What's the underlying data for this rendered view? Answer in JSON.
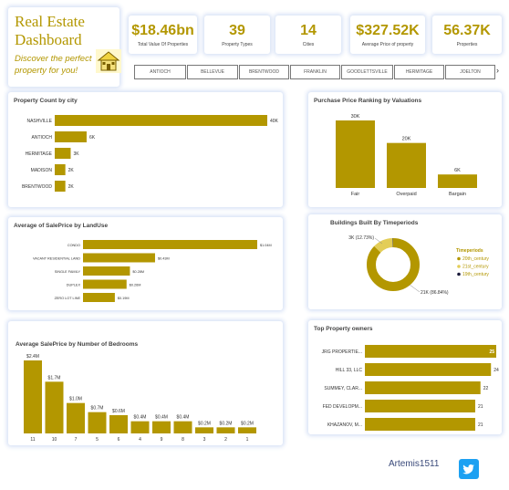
{
  "header": {
    "title_line1": "Real Estate",
    "title_line2": "Dashboard",
    "tagline_line1": "Discover the perfect",
    "tagline_line2": "property for you!",
    "house_icon": "house-icon"
  },
  "kpis": [
    {
      "value": "$18.46bn",
      "label": "Total Value Of Properties"
    },
    {
      "value": "39",
      "label": "Property Types"
    },
    {
      "value": "14",
      "label": "Cities"
    },
    {
      "value": "$327.52K",
      "label": "Average Price of property"
    },
    {
      "value": "56.37K",
      "label": "Properties"
    }
  ],
  "city_slicer": {
    "items": [
      "ANTIOCH",
      "BELLEVUE",
      "BRENTWOOD",
      "FRANKLIN",
      "GOODLETTSVILLE",
      "HERMITAGE",
      "JOELTON"
    ],
    "next_icon": "chevron-right-icon"
  },
  "footer": {
    "author": "Artemis1511",
    "twitter_icon": "twitter-icon"
  },
  "colors": {
    "gold": "#b39700",
    "light_gold": "#e3cd57",
    "dark": "#1a1a3a"
  },
  "chart_data": [
    {
      "id": "count_city",
      "type": "bar",
      "orientation": "horizontal",
      "title": "Property Count by city",
      "categories": [
        "NASHVILLE",
        "ANTIOCH",
        "HERMITAGE",
        "MADISON",
        "BRENTWOOD"
      ],
      "values": [
        40000,
        6000,
        3000,
        2000,
        2000
      ],
      "labels": [
        "40K",
        "6K",
        "3K",
        "2K",
        "2K"
      ]
    },
    {
      "id": "price_rank",
      "type": "bar",
      "orientation": "vertical",
      "title": "Purchase Price Ranking by Valuations",
      "categories": [
        "Fair",
        "Overpaid",
        "Bargain"
      ],
      "values": [
        30000,
        20000,
        6000
      ],
      "labels": [
        "30K",
        "20K",
        "6K"
      ]
    },
    {
      "id": "landuse",
      "type": "bar",
      "orientation": "horizontal",
      "title": "Average of SalePrice by LandUse",
      "categories": [
        "CONDO",
        "VACANT RESIDENTIAL LAND",
        "SINGLE FAMILY",
        "DUPLEX",
        "ZERO LOT LINE"
      ],
      "values": [
        1.04,
        0.43,
        0.28,
        0.26,
        0.19
      ],
      "labels": [
        "$1.04M",
        "$0.43M",
        "$0.28M",
        "$0.26M",
        "$0.19M"
      ]
    },
    {
      "id": "timeperiods",
      "type": "pie",
      "variant": "donut",
      "title": "Buildings Built By Timeperiods",
      "legend_title": "Timeperiods",
      "slices": [
        {
          "name": "20th_century",
          "value": 21000,
          "label": "21K (86.84%)",
          "color": "#b39700"
        },
        {
          "name": "21st_century",
          "value": 3000,
          "label": "3K (12.73%)",
          "color": "#e3cd57"
        },
        {
          "name": "19th_century",
          "value": 104,
          "label": "",
          "color": "#1a1a3a"
        }
      ],
      "legend_position": "right"
    },
    {
      "id": "bedrooms",
      "type": "bar",
      "orientation": "vertical",
      "title": "Average SalePrice by Number of Bedrooms",
      "categories": [
        "11",
        "10",
        "7",
        "5",
        "6",
        "4",
        "9",
        "8",
        "3",
        "2",
        "1"
      ],
      "values": [
        2.4,
        1.7,
        1.0,
        0.7,
        0.6,
        0.4,
        0.4,
        0.4,
        0.2,
        0.2,
        0.2
      ],
      "labels": [
        "$2.4M",
        "$1.7M",
        "$1.0M",
        "$0.7M",
        "$0.6M",
        "$0.4M",
        "$0.4M",
        "$0.4M",
        "$0.2M",
        "$0.2M",
        "$0.2M"
      ]
    },
    {
      "id": "owners",
      "type": "bar",
      "orientation": "horizontal",
      "title": "Top Property owners",
      "categories": [
        "JRG PROPERTIE...",
        "HILL 33, LLC",
        "SUMMEY, CLAR...",
        "FED DEVELOPM...",
        "KHAZANOV, M..."
      ],
      "values": [
        25,
        24,
        22,
        21,
        21
      ],
      "labels": [
        "25",
        "24",
        "22",
        "21",
        "21"
      ]
    }
  ]
}
